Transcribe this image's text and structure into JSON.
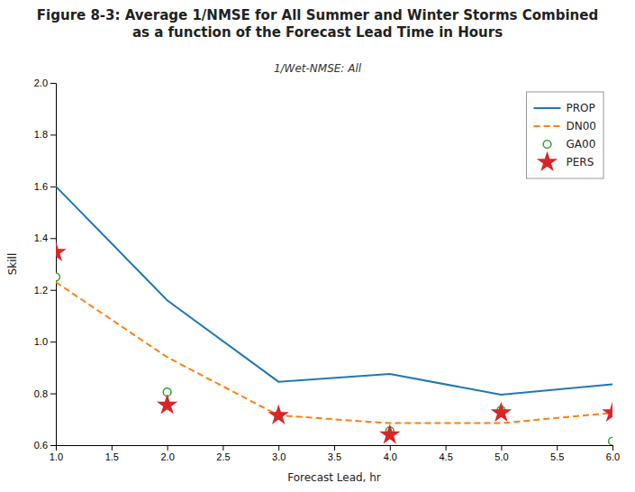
{
  "chart_data": {
    "type": "line",
    "title": "Figure 8-3: Average 1/NMSE for All Summer and Winter Storms Combined\nas a function of the Forecast Lead Time in Hours",
    "subtitle": "1/Wet-NMSE: All",
    "xlabel": "Forecast Lead, hr",
    "ylabel": "Skill",
    "xlim": [
      1,
      6
    ],
    "ylim": [
      0.6,
      2.0
    ],
    "xticks": [
      {
        "value": 1.0,
        "label": "1.0"
      },
      1.5,
      {
        "value": 2.0,
        "label": "2.0"
      },
      2.5,
      {
        "value": 3.0,
        "label": "3.0"
      },
      3.5,
      {
        "value": 4.0,
        "label": "4.0"
      },
      4.5,
      {
        "value": 5.0,
        "label": "5.0"
      },
      5.5,
      {
        "value": 6.0,
        "label": "6.0"
      }
    ],
    "yticks": [
      0.6,
      0.8,
      {
        "value": 1.0,
        "label": "1.0"
      },
      1.2,
      1.4,
      1.6,
      1.8,
      {
        "value": 2.0,
        "label": "2.0"
      }
    ],
    "x": [
      1,
      2,
      3,
      4,
      5,
      6
    ],
    "series": [
      {
        "name": "PROP",
        "type": "line",
        "line_style": "solid",
        "values": [
          1.6,
          1.16,
          0.845,
          0.875,
          0.795,
          0.835
        ]
      },
      {
        "name": "DN00",
        "type": "line",
        "line_style": "dashed",
        "values": [
          1.23,
          0.94,
          0.715,
          0.685,
          0.685,
          0.725
        ]
      },
      {
        "name": "GA00",
        "type": "scatter",
        "marker": "circle",
        "values": [
          1.25,
          0.805,
          0.715,
          0.655,
          0.735,
          0.615
        ]
      },
      {
        "name": "PERS",
        "type": "scatter",
        "marker": "star",
        "values": [
          1.345,
          0.755,
          0.715,
          0.64,
          0.725,
          0.725
        ]
      }
    ],
    "legend": "upper right",
    "grid": false
  }
}
